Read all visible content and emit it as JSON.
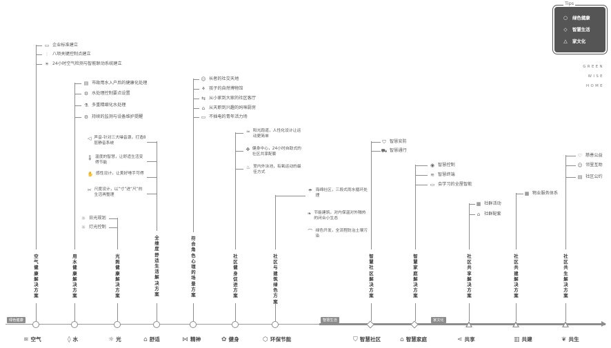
{
  "tips": {
    "title": "Tips",
    "items": [
      {
        "symbol": "circle-symbol",
        "glyph": "○",
        "label": "绿色健康"
      },
      {
        "symbol": "diamond-symbol",
        "glyph": "◇",
        "label": "智慧生活"
      },
      {
        "symbol": "triangle-symbol",
        "glyph": "△",
        "label": "家文化"
      }
    ]
  },
  "brand": [
    "GREEN",
    "WISE",
    "HOME"
  ],
  "segments": {
    "green": "绿色健康",
    "wise": "智慧生活",
    "family": "家文化"
  },
  "categories": [
    {
      "label": "空气",
      "icon": "air-icon",
      "glyph": "≋"
    },
    {
      "label": "水",
      "icon": "water-drop-icon",
      "glyph": "◊"
    },
    {
      "label": "光",
      "icon": "sun-icon",
      "glyph": "☼"
    },
    {
      "label": "舒适",
      "icon": "comfort-building-icon",
      "glyph": "⌂"
    },
    {
      "label": "精神",
      "icon": "spirit-icon",
      "glyph": "⋈"
    },
    {
      "label": "健身",
      "icon": "fitness-icon",
      "glyph": "✿"
    },
    {
      "label": "环保节能",
      "icon": "eco-box-icon",
      "glyph": "⬡"
    },
    {
      "label": "智慧社区",
      "icon": "shield-icon",
      "glyph": "⛉"
    },
    {
      "label": "智慧家庭",
      "icon": "smart-home-icon",
      "glyph": "⌂"
    },
    {
      "label": "共享",
      "icon": "share-icon",
      "glyph": "⋖"
    },
    {
      "label": "共建",
      "icon": "co-build-icon",
      "glyph": "▥"
    },
    {
      "label": "共生",
      "icon": "symbiosis-icon",
      "glyph": "❦"
    }
  ],
  "solutions": [
    "空气健康解决方案",
    "用水健康解决方案",
    "光照健康解决方案",
    "全维度舒适生活解决方案",
    "符合角色心理的场景方案",
    "社区健身促进方案",
    "社区与建筑绿色方案",
    "智慧社区解决方案",
    "智慧家庭解决方案",
    "社区共享解决方案",
    "社区共建解决方案",
    "社区共生解决方案"
  ],
  "air_items": [
    {
      "icon": "monitor-icon",
      "glyph": "▭",
      "text": "企业标准建立"
    },
    {
      "icon": "control-sliders-icon",
      "glyph": "⫶",
      "text": "八项关键控制点建立"
    },
    {
      "icon": "bulb-icon",
      "glyph": "☀",
      "text": "24小时空气检测与智能联动系统建立"
    }
  ],
  "water_items": [
    {
      "icon": "clipboard-icon",
      "glyph": "▤",
      "text": "市政用水入户后的健康化处理"
    },
    {
      "icon": "gear-icon",
      "glyph": "⚙",
      "text": "水处理控制要点设置"
    },
    {
      "icon": "flask-icon",
      "glyph": "⚗",
      "text": "多重精细化水处理"
    },
    {
      "icon": "monitor-gear-icon",
      "glyph": "⚙",
      "text": "持续的监测与设备维护提醒"
    }
  ],
  "comfort_items": [
    {
      "icon": "speaker-icon",
      "glyph": "◁",
      "text": "声音-针对三大噪音源，打造8层静音系统"
    },
    {
      "icon": "thermometer-icon",
      "glyph": "🌡",
      "text": "温度的智慧，让舒适生活变得节能"
    },
    {
      "icon": "handshake-icon",
      "glyph": "✋",
      "text": "感性设计，让美好唾手可得"
    },
    {
      "icon": "ruler-icon",
      "glyph": "✂",
      "text": "尺度设计，以“寸”进“尺”的生活再整理"
    }
  ],
  "light_items": [
    {
      "icon": "sun-plan-icon",
      "glyph": "☼",
      "text": "日光规划"
    },
    {
      "icon": "lamp-control-icon",
      "glyph": "☼",
      "text": "灯光控制"
    }
  ],
  "spirit_items": [
    {
      "icon": "elder-icon",
      "glyph": "☺",
      "text": "长者的社交天地"
    },
    {
      "icon": "child-nature-icon",
      "glyph": "⚘",
      "text": "孩子的自然博物馆"
    },
    {
      "icon": "community-hall-icon",
      "glyph": "⇆",
      "text": "从小家到大家的社区客厅"
    },
    {
      "icon": "kitchen-icon",
      "glyph": "⌂",
      "text": "从天职到兴趣的妈咪厨房"
    },
    {
      "icon": "youth-icon",
      "glyph": "▭",
      "text": "不插电的青年活力场"
    }
  ],
  "fitness_items": [
    {
      "icon": "running-path-icon",
      "glyph": "≈",
      "text": "阳光跑道，人性化设计让运动更简单"
    },
    {
      "icon": "dumbbell-icon",
      "glyph": "✥",
      "text": "健身中心，24小时自助式的社区共享配套"
    },
    {
      "icon": "swimmer-icon",
      "glyph": "♨",
      "text": "室内外泳池，有氧运动的最佳方式"
    }
  ],
  "eco_items": [
    {
      "icon": "rain-icon",
      "glyph": "☂",
      "text": "海绵社区，三段式雨水循环处理"
    },
    {
      "icon": "leaf-building-icon",
      "glyph": "❧",
      "text": "节能建筑，对内保温对外隔热的闭合小生态"
    },
    {
      "icon": "mountain-icon",
      "glyph": "⌒",
      "text": "绿色开发，全流程防治土壤污染"
    }
  ],
  "smart_community_items": [
    {
      "icon": "shield-check-icon",
      "glyph": "⛉",
      "text": "智慧安防"
    },
    {
      "icon": "car-icon",
      "glyph": "⛟",
      "text": "智慧通行"
    }
  ],
  "smart_home_items": [
    {
      "icon": "control-icon",
      "glyph": "◉",
      "text": "智慧控制"
    },
    {
      "icon": "wifi-icon",
      "glyph": "≋",
      "text": "智慧终端"
    },
    {
      "icon": "chat-icon",
      "glyph": "▭",
      "text": "会学习的全屋智能"
    }
  ],
  "share_items": [
    {
      "icon": "grid-icon",
      "glyph": "▦",
      "text": "社群活动"
    },
    {
      "icon": "home-service-icon",
      "glyph": "⌂",
      "text": "社群配套"
    }
  ],
  "cobuild_items": [
    {
      "icon": "service-grid-icon",
      "glyph": "▦",
      "text": "物业服务体系"
    }
  ],
  "symbiosis_items": [
    {
      "icon": "heart-icon",
      "glyph": "♡",
      "text": "慈善公益"
    },
    {
      "icon": "neighbor-icon",
      "glyph": "☺",
      "text": "邻里互助"
    },
    {
      "icon": "convention-icon",
      "glyph": "▤",
      "text": "社区公约"
    }
  ]
}
